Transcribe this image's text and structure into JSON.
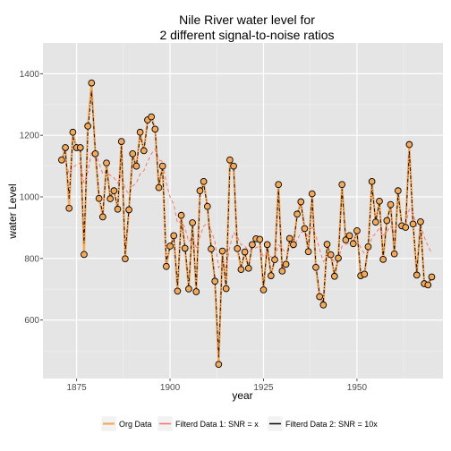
{
  "chart_data": {
    "type": "line",
    "title": "Nile River water level for\n2 different signal-to-noise ratios",
    "xlabel": "year",
    "ylabel": "water Level",
    "xlim": [
      1866,
      1973
    ],
    "ylim": [
      410,
      1500
    ],
    "xticks": [
      1875,
      1900,
      1925,
      1950
    ],
    "yticks": [
      600,
      800,
      1000,
      1200,
      1400
    ],
    "grid": true,
    "legend_position": "bottom",
    "x": [
      1871,
      1872,
      1873,
      1874,
      1875,
      1876,
      1877,
      1878,
      1879,
      1880,
      1881,
      1882,
      1883,
      1884,
      1885,
      1886,
      1887,
      1888,
      1889,
      1890,
      1891,
      1892,
      1893,
      1894,
      1895,
      1896,
      1897,
      1898,
      1899,
      1900,
      1901,
      1902,
      1903,
      1904,
      1905,
      1906,
      1907,
      1908,
      1909,
      1910,
      1911,
      1912,
      1913,
      1914,
      1915,
      1916,
      1917,
      1918,
      1919,
      1920,
      1921,
      1922,
      1923,
      1924,
      1925,
      1926,
      1927,
      1928,
      1929,
      1930,
      1931,
      1932,
      1933,
      1934,
      1935,
      1936,
      1937,
      1938,
      1939,
      1940,
      1941,
      1942,
      1943,
      1944,
      1945,
      1946,
      1947,
      1948,
      1949,
      1950,
      1951,
      1952,
      1953,
      1954,
      1955,
      1956,
      1957,
      1958,
      1959,
      1960,
      1961,
      1962,
      1963,
      1964,
      1965,
      1966,
      1967,
      1968,
      1969,
      1970
    ],
    "series": [
      {
        "name": "Org Data",
        "color": "#f4a95a",
        "values": [
          1120,
          1160,
          963,
          1210,
          1160,
          1160,
          813,
          1230,
          1370,
          1140,
          995,
          935,
          1110,
          994,
          1020,
          960,
          1180,
          799,
          958,
          1140,
          1100,
          1210,
          1150,
          1250,
          1260,
          1220,
          1030,
          1100,
          774,
          840,
          874,
          694,
          940,
          833,
          701,
          916,
          692,
          1020,
          1050,
          969,
          831,
          726,
          456,
          824,
          702,
          1120,
          1100,
          832,
          764,
          821,
          768,
          845,
          864,
          862,
          698,
          845,
          744,
          796,
          1040,
          759,
          781,
          865,
          845,
          944,
          984,
          897,
          822,
          1010,
          771,
          676,
          649,
          846,
          812,
          742,
          801,
          1040,
          860,
          874,
          848,
          890,
          744,
          749,
          838,
          1050,
          918,
          986,
          797,
          923,
          975,
          815,
          1020,
          906,
          901,
          1170,
          912,
          746,
          919,
          718,
          714,
          740
        ]
      },
      {
        "name": "Filterd Data 1: SNR = x",
        "color": "#f8766d",
        "values": [
          1110,
          1115,
          1075,
          1095,
          1105,
          1110,
          1045,
          1080,
          1145,
          1140,
          1110,
          1075,
          1085,
          1070,
          1062,
          1045,
          1070,
          1025,
          1010,
          1035,
          1045,
          1075,
          1085,
          1115,
          1140,
          1155,
          1120,
          1115,
          1045,
          1000,
          975,
          915,
          922,
          900,
          855,
          867,
          835,
          872,
          905,
          915,
          890,
          855,
          770,
          785,
          770,
          840,
          885,
          870,
          845,
          840,
          825,
          830,
          835,
          840,
          805,
          815,
          805,
          800,
          845,
          830,
          820,
          830,
          835,
          860,
          885,
          887,
          870,
          902,
          875,
          830,
          790,
          802,
          805,
          790,
          795,
          840,
          845,
          850,
          850,
          860,
          835,
          815,
          820,
          870,
          880,
          900,
          875,
          887,
          905,
          885,
          915,
          912,
          910,
          960,
          948,
          905,
          907,
          870,
          840,
          818
        ]
      },
      {
        "name": "Filterd Data 2: SNR = 10x",
        "color": "#1a0f0f",
        "values": [
          1115,
          1150,
          995,
          1195,
          1160,
          1158,
          850,
          1210,
          1345,
          1150,
          1005,
          945,
          1095,
          1000,
          1018,
          965,
          1165,
          815,
          960,
          1130,
          1100,
          1200,
          1152,
          1240,
          1255,
          1218,
          1040,
          1095,
          790,
          838,
          868,
          710,
          925,
          838,
          710,
          908,
          705,
          1005,
          1042,
          968,
          838,
          735,
          480,
          810,
          710,
          1095,
          1095,
          840,
          775,
          818,
          772,
          843,
          862,
          860,
          710,
          840,
          750,
          795,
          1025,
          765,
          780,
          860,
          846,
          938,
          978,
          898,
          828,
          1000,
          778,
          685,
          658,
          840,
          812,
          748,
          800,
          1025,
          863,
          873,
          850,
          887,
          752,
          752,
          838,
          1038,
          920,
          980,
          805,
          920,
          970,
          823,
          1012,
          908,
          903,
          1150,
          915,
          757,
          912,
          725,
          718,
          738
        ]
      }
    ]
  }
}
